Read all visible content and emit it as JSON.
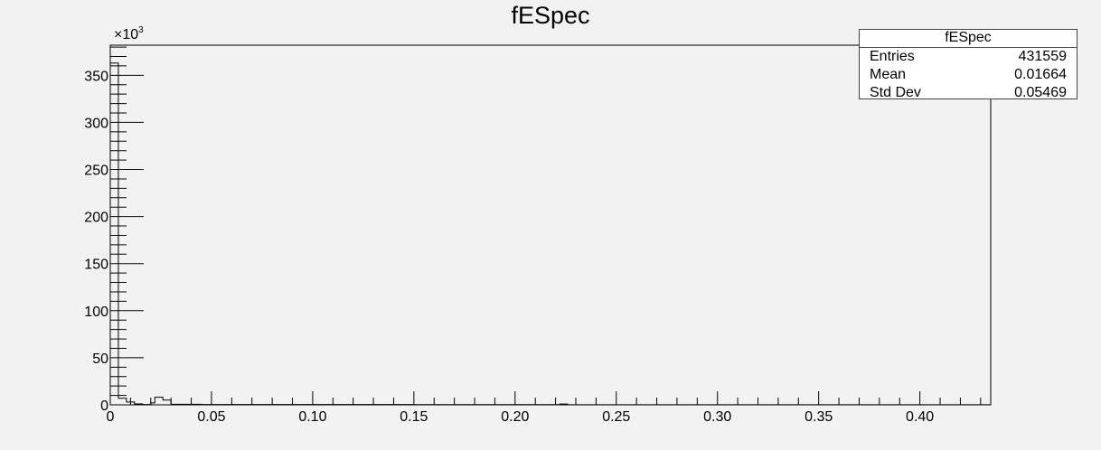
{
  "chart_data": {
    "type": "histogram",
    "title": "fESpec",
    "xlabel": "",
    "ylabel": "",
    "y_exponent_label": "×10",
    "y_exponent_power": "3",
    "xlim": [
      0,
      0.435
    ],
    "ylim": [
      0,
      382
    ],
    "x_ticks": [
      "0",
      "0.05",
      "0.10",
      "0.15",
      "0.20",
      "0.25",
      "0.30",
      "0.35",
      "0.40"
    ],
    "x_tick_values": [
      0,
      0.05,
      0.1,
      0.15,
      0.2,
      0.25,
      0.3,
      0.35,
      0.4
    ],
    "y_ticks": [
      "0",
      "50",
      "100",
      "150",
      "200",
      "250",
      "300",
      "350"
    ],
    "y_tick_values": [
      0,
      50,
      100,
      150,
      200,
      250,
      300,
      350
    ],
    "bins": {
      "edges": [
        0,
        0.004,
        0.008,
        0.012,
        0.016,
        0.02,
        0.022,
        0.026,
        0.03,
        0.045,
        0.1,
        0.15,
        0.2,
        0.222,
        0.226,
        0.435
      ],
      "counts": [
        363,
        7,
        3,
        1,
        0.3,
        2,
        8,
        5,
        0.6,
        0.4,
        0.3,
        0.2,
        0.2,
        0.8,
        0.1
      ]
    },
    "grid": false,
    "line_color": "#000000"
  },
  "stats_box": {
    "title": "fESpec",
    "rows": [
      {
        "label": "Entries",
        "value": "431559"
      },
      {
        "label": "Mean",
        "value": "0.01664"
      },
      {
        "label": "Std Dev",
        "value": "0.05469"
      }
    ]
  }
}
